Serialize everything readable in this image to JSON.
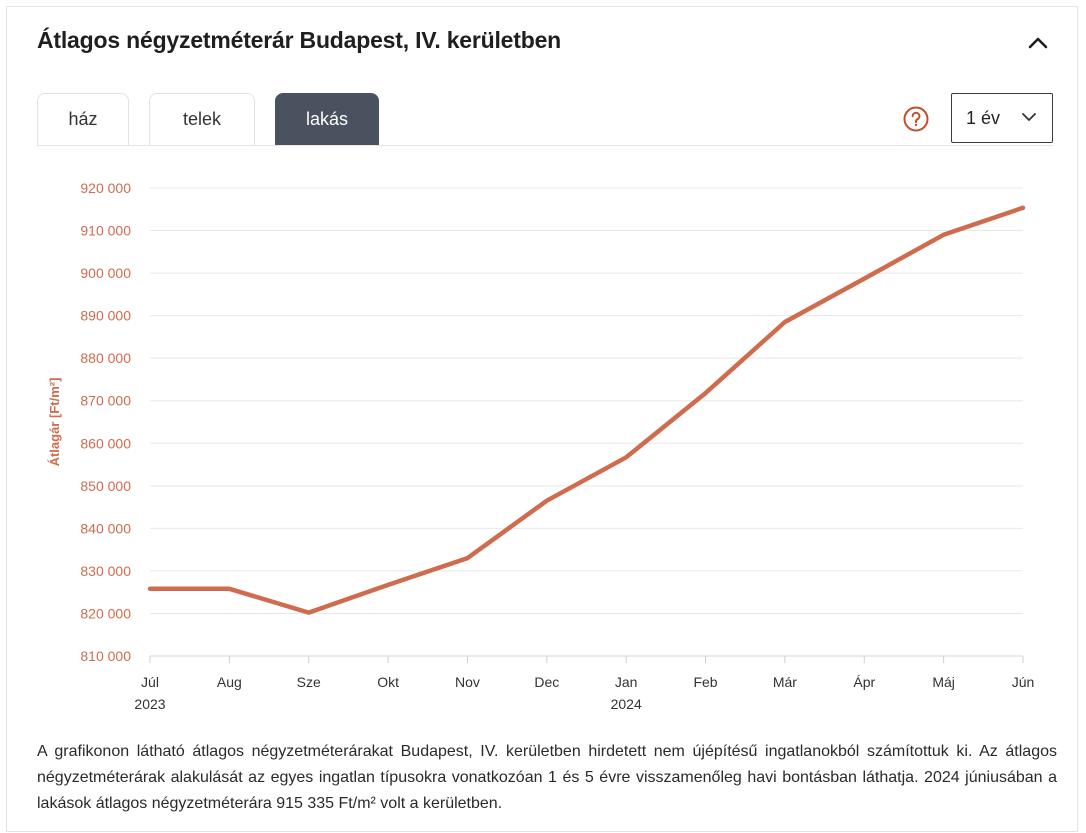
{
  "title": "Átlagos négyzetméterár Budapest, IV. kerületben",
  "tabs": [
    {
      "label": "ház",
      "active": false
    },
    {
      "label": "telek",
      "active": false
    },
    {
      "label": "lakás",
      "active": true
    }
  ],
  "period_select": {
    "value": "1 év"
  },
  "help_icon": "question-circle-icon",
  "colors": {
    "accent": "#d06c4e",
    "tab_active": "#4a5260",
    "help": "#c0502a"
  },
  "chart_data": {
    "type": "line",
    "ylabel": "Átlagár [Ft/m²]",
    "xlabel": "",
    "x": [
      "Júl",
      "Aug",
      "Sze",
      "Okt",
      "Nov",
      "Dec",
      "Jan",
      "Feb",
      "Már",
      "Ápr",
      "Máj",
      "Jún"
    ],
    "x_sublabels": {
      "Júl": "2023",
      "Jan": "2024"
    },
    "series": [
      {
        "values": [
          825800,
          825800,
          820200,
          826700,
          833000,
          846500,
          856700,
          871800,
          888500,
          898700,
          909000,
          915335
        ]
      }
    ],
    "ylim": [
      810000,
      920000
    ],
    "yticks": [
      "810 000",
      "820 000",
      "830 000",
      "840 000",
      "850 000",
      "860 000",
      "870 000",
      "880 000",
      "890 000",
      "900 000",
      "910 000",
      "920 000"
    ],
    "grid": true,
    "legend": "none"
  },
  "description": "A grafikonon látható átlagos négyzetméterárakat Budapest, IV. kerületben hirdetett nem újépítésű ingatlanokból számítottuk ki. Az átlagos négyzetméterárak alakulását az egyes ingatlan típusokra vonatkozóan 1 és 5 évre visszamenőleg havi bontásban láthatja. 2024 júniusában a lakások átlagos négyzetméterára 915 335 Ft/m² volt a kerületben."
}
